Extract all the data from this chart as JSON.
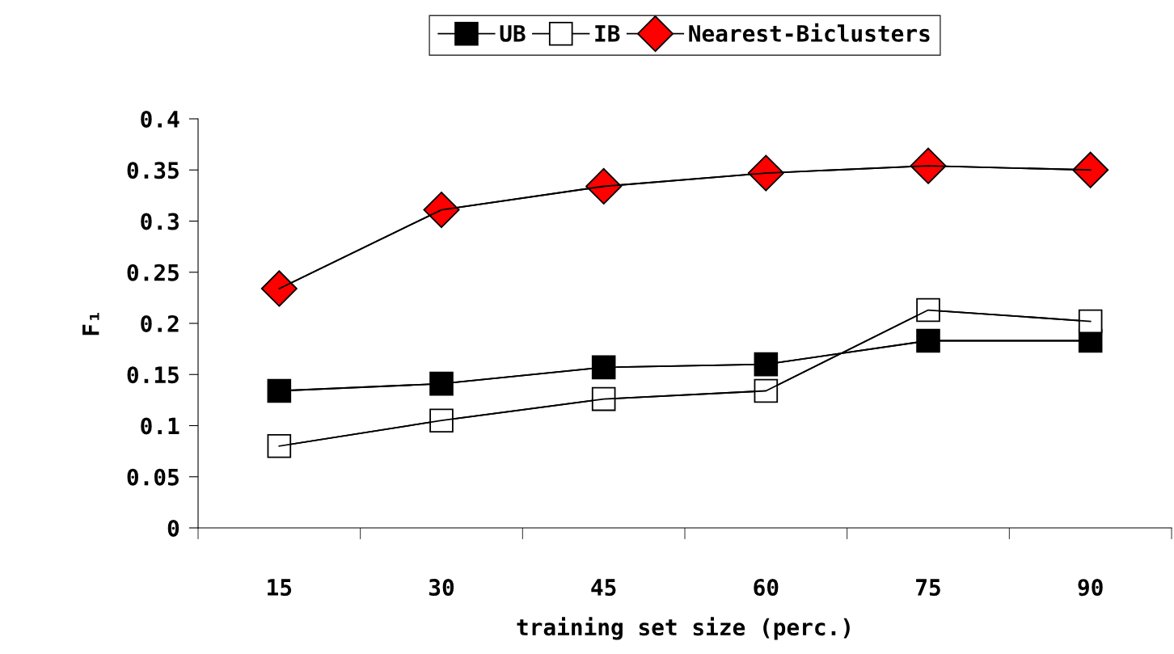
{
  "chart_data": {
    "type": "line",
    "xlabel": "training set size (perc.)",
    "ylabel": "F₁",
    "categories": [
      "15",
      "30",
      "45",
      "60",
      "75",
      "90"
    ],
    "series": [
      {
        "name": "UB",
        "color": "#000000",
        "marker": "square",
        "values": [
          0.134,
          0.141,
          0.157,
          0.16,
          0.183,
          0.183
        ]
      },
      {
        "name": "IB",
        "color": "#ffffff",
        "marker": "square",
        "values": [
          0.08,
          0.105,
          0.126,
          0.134,
          0.213,
          0.202
        ]
      },
      {
        "name": "Nearest-Biclusters",
        "color": "#ff0000",
        "marker": "diamond",
        "values": [
          0.234,
          0.311,
          0.334,
          0.347,
          0.354,
          0.35
        ]
      }
    ],
    "ylim": [
      0,
      0.4
    ],
    "yticks": [
      {
        "value": 0,
        "label": "0"
      },
      {
        "value": 0.05,
        "label": "0.05"
      },
      {
        "value": 0.1,
        "label": "0.1"
      },
      {
        "value": 0.15,
        "label": "0.15"
      },
      {
        "value": 0.2,
        "label": "0.2"
      },
      {
        "value": 0.25,
        "label": "0.25"
      },
      {
        "value": 0.3,
        "label": "0.3"
      },
      {
        "value": 0.35,
        "label": "0.35"
      },
      {
        "value": 0.4,
        "label": "0.4"
      }
    ],
    "grid": false,
    "legend": "top",
    "line_style": "solid"
  }
}
